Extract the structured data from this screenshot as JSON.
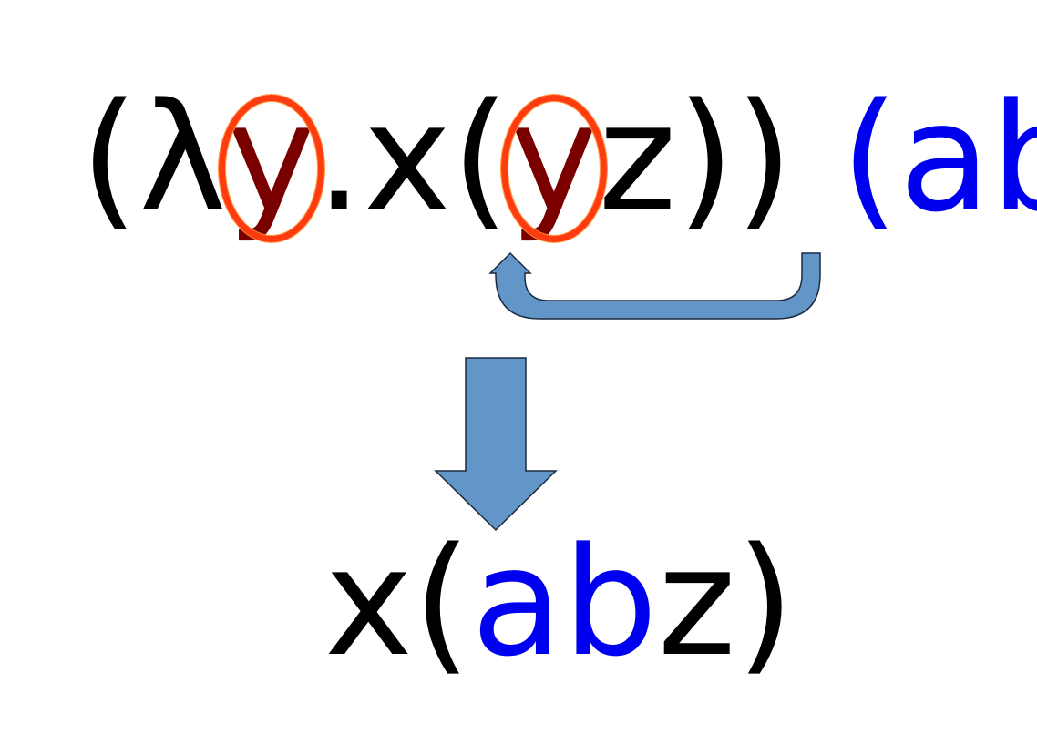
{
  "top_expression": {
    "open_paren": "(",
    "lambda": "λ",
    "bound_var": "y",
    "dot_x_paren": ".x(",
    "body_var": "y",
    "z_close": "z))",
    "space": " ",
    "argument": "(ab)"
  },
  "bottom_expression": {
    "x_paren": "x(",
    "ab": "ab",
    "z_close": "z)"
  },
  "colors": {
    "text": "#000000",
    "variable": "#7a0000",
    "argument": "#0000f0",
    "circle_highlight": "#ff3b10",
    "arrow_fill": "#6396c8",
    "arrow_stroke": "#1a2a40"
  },
  "icons": [
    "substitution-curved-arrow-icon",
    "reduction-down-arrow-icon",
    "highlight-circle-icon"
  ]
}
